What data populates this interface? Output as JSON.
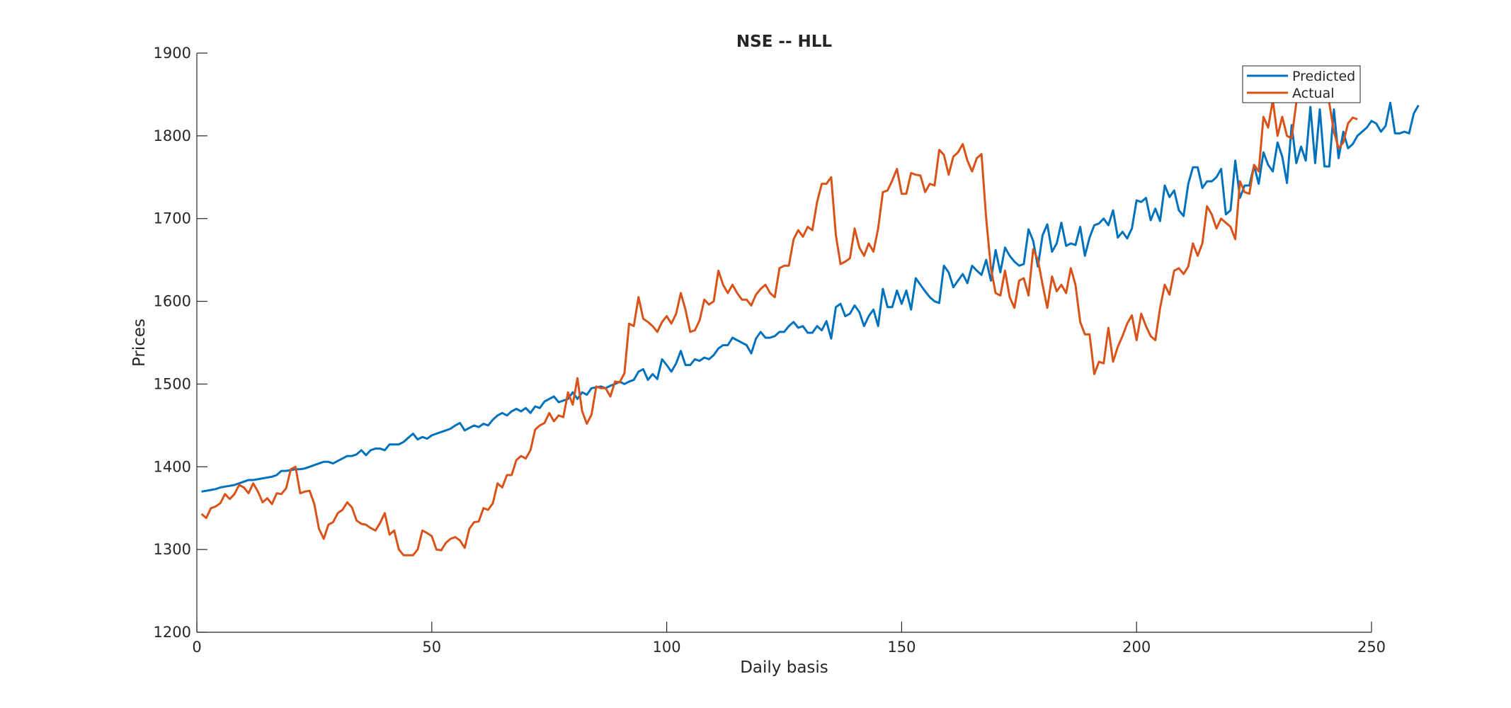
{
  "chart_data": {
    "type": "line",
    "title": "NSE -- HLL",
    "xlabel": "Daily basis",
    "ylabel": "Prices",
    "xlim": [
      0,
      250
    ],
    "ylim": [
      1200,
      1900
    ],
    "xticks": [
      0,
      50,
      100,
      150,
      200,
      250
    ],
    "yticks": [
      1200,
      1300,
      1400,
      1500,
      1600,
      1700,
      1800,
      1900
    ],
    "grid": false,
    "legend_position": "top-right",
    "series": [
      {
        "name": "Predicted",
        "color": "#0072BD",
        "x_start": 1,
        "values": [
          1370,
          1371,
          1372,
          1373,
          1375,
          1376,
          1377,
          1378,
          1380,
          1382,
          1384,
          1384,
          1385,
          1386,
          1387,
          1388,
          1390,
          1395,
          1395,
          1396,
          1397,
          1397,
          1398,
          1400,
          1402,
          1404,
          1406,
          1406,
          1404,
          1407,
          1410,
          1413,
          1413,
          1415,
          1420,
          1414,
          1420,
          1422,
          1422,
          1420,
          1427,
          1427,
          1427,
          1430,
          1435,
          1440,
          1433,
          1436,
          1434,
          1438,
          1440,
          1442,
          1444,
          1446,
          1450,
          1453,
          1444,
          1447,
          1450,
          1448,
          1452,
          1450,
          1457,
          1462,
          1465,
          1462,
          1467,
          1470,
          1467,
          1471,
          1465,
          1473,
          1471,
          1479,
          1482,
          1485,
          1478,
          1480,
          1482,
          1490,
          1482,
          1490,
          1487,
          1495,
          1496,
          1497,
          1495,
          1498,
          1500,
          1503,
          1500,
          1503,
          1505,
          1515,
          1518,
          1505,
          1512,
          1506,
          1530,
          1523,
          1515,
          1525,
          1540,
          1523,
          1523,
          1530,
          1528,
          1532,
          1530,
          1535,
          1543,
          1547,
          1547,
          1556,
          1553,
          1550,
          1547,
          1537,
          1555,
          1563,
          1556,
          1556,
          1558,
          1563,
          1563,
          1570,
          1575,
          1568,
          1570,
          1562,
          1562,
          1570,
          1565,
          1576,
          1555,
          1593,
          1597,
          1582,
          1585,
          1595,
          1587,
          1570,
          1582,
          1590,
          1570,
          1615,
          1593,
          1593,
          1613,
          1597,
          1613,
          1590,
          1628,
          1620,
          1612,
          1605,
          1600,
          1598,
          1643,
          1635,
          1617,
          1625,
          1633,
          1622,
          1643,
          1637,
          1632,
          1650,
          1625,
          1662,
          1635,
          1665,
          1655,
          1648,
          1643,
          1645,
          1687,
          1673,
          1642,
          1680,
          1693,
          1660,
          1670,
          1695,
          1667,
          1670,
          1668,
          1690,
          1655,
          1677,
          1692,
          1694,
          1700,
          1692,
          1710,
          1677,
          1684,
          1676,
          1688,
          1722,
          1720,
          1725,
          1698,
          1712,
          1697,
          1740,
          1726,
          1734,
          1710,
          1703,
          1742,
          1762,
          1762,
          1737,
          1745,
          1745,
          1750,
          1760,
          1705,
          1710,
          1770,
          1725,
          1740,
          1740,
          1764,
          1742,
          1780,
          1765,
          1757,
          1792,
          1775,
          1743,
          1813,
          1767,
          1787,
          1770,
          1835,
          1767,
          1832,
          1763,
          1763,
          1832,
          1773,
          1805,
          1785,
          1790,
          1800,
          1805,
          1810,
          1818,
          1815,
          1805,
          1812,
          1840,
          1803,
          1803,
          1805,
          1803,
          1827,
          1837
        ]
      },
      {
        "name": "Actual",
        "color": "#D95319",
        "x_start": 1,
        "values": [
          1343,
          1338,
          1350,
          1352,
          1356,
          1367,
          1361,
          1367,
          1378,
          1375,
          1368,
          1380,
          1370,
          1357,
          1362,
          1355,
          1368,
          1367,
          1374,
          1397,
          1400,
          1368,
          1370,
          1371,
          1355,
          1325,
          1313,
          1330,
          1333,
          1344,
          1348,
          1357,
          1351,
          1335,
          1331,
          1330,
          1326,
          1323,
          1332,
          1344,
          1318,
          1323,
          1300,
          1293,
          1293,
          1293,
          1300,
          1323,
          1320,
          1316,
          1300,
          1299,
          1308,
          1313,
          1315,
          1311,
          1302,
          1325,
          1333,
          1334,
          1350,
          1348,
          1356,
          1380,
          1375,
          1390,
          1390,
          1408,
          1413,
          1410,
          1420,
          1445,
          1450,
          1453,
          1465,
          1455,
          1462,
          1460,
          1490,
          1475,
          1507,
          1467,
          1452,
          1463,
          1497,
          1495,
          1495,
          1485,
          1503,
          1502,
          1513,
          1573,
          1570,
          1605,
          1579,
          1575,
          1570,
          1563,
          1575,
          1582,
          1573,
          1585,
          1610,
          1590,
          1563,
          1565,
          1577,
          1602,
          1596,
          1600,
          1637,
          1620,
          1610,
          1620,
          1610,
          1602,
          1602,
          1595,
          1608,
          1615,
          1620,
          1610,
          1605,
          1640,
          1643,
          1643,
          1675,
          1686,
          1678,
          1690,
          1686,
          1720,
          1742,
          1742,
          1750,
          1680,
          1645,
          1648,
          1652,
          1688,
          1665,
          1655,
          1670,
          1660,
          1688,
          1732,
          1734,
          1746,
          1760,
          1730,
          1730,
          1755,
          1753,
          1752,
          1732,
          1742,
          1740,
          1783,
          1777,
          1753,
          1775,
          1780,
          1790,
          1770,
          1757,
          1773,
          1778,
          1700,
          1640,
          1610,
          1607,
          1637,
          1605,
          1592,
          1625,
          1628,
          1607,
          1663,
          1650,
          1620,
          1592,
          1630,
          1612,
          1620,
          1610,
          1640,
          1620,
          1575,
          1560,
          1560,
          1512,
          1527,
          1525,
          1568,
          1527,
          1545,
          1558,
          1573,
          1583,
          1553,
          1585,
          1570,
          1558,
          1553,
          1592,
          1620,
          1608,
          1637,
          1640,
          1633,
          1642,
          1670,
          1655,
          1670,
          1715,
          1705,
          1688,
          1700,
          1695,
          1690,
          1675,
          1745,
          1732,
          1730,
          1765,
          1757,
          1823,
          1810,
          1843,
          1800,
          1823,
          1800,
          1797,
          1840,
          1853,
          1865,
          1856,
          1852,
          1860,
          1848,
          1840,
          1805,
          1785,
          1792,
          1815,
          1822,
          1820
        ]
      }
    ]
  }
}
